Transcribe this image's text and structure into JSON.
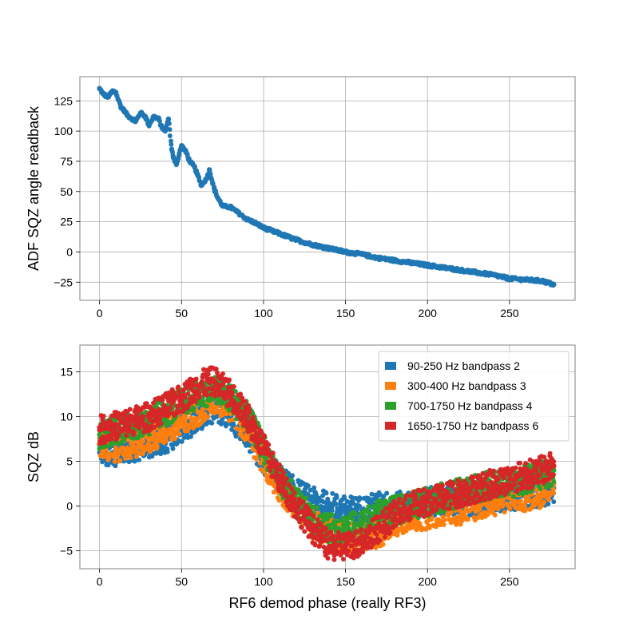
{
  "colors": {
    "c0": "#1f77b4",
    "c1": "#ff7f0e",
    "c2": "#2ca02c",
    "c3": "#d62728",
    "grid": "#b0b0b0",
    "axis": "#808080"
  },
  "chart_data": [
    {
      "type": "scatter",
      "title": "",
      "xlabel": "",
      "ylabel": "ADF SQZ angle readback",
      "xlim": [
        -12,
        290
      ],
      "ylim": [
        -40,
        145
      ],
      "xticks": [
        0,
        50,
        100,
        150,
        200,
        250
      ],
      "yticks": [
        -25,
        0,
        25,
        50,
        75,
        100,
        125
      ],
      "ytick_labels": [
        "−25",
        "0",
        "25",
        "50",
        "75",
        "100",
        "125"
      ],
      "grid": true,
      "series": [
        {
          "color": "#1f77b4",
          "x": [
            0,
            2,
            5,
            8,
            10,
            13,
            15,
            17,
            20,
            22,
            25,
            28,
            30,
            33,
            36,
            38,
            40,
            42,
            44,
            45,
            47,
            50,
            53,
            55,
            58,
            60,
            62,
            65,
            67,
            70,
            72,
            75,
            80,
            85,
            90,
            95,
            100,
            110,
            120,
            130,
            140,
            150,
            160,
            170,
            180,
            190,
            200,
            210,
            220,
            230,
            240,
            250,
            260,
            270,
            277
          ],
          "y": [
            135,
            131,
            128,
            133,
            132,
            120,
            117,
            113,
            110,
            108,
            115,
            112,
            105,
            112,
            110,
            103,
            100,
            110,
            85,
            78,
            73,
            88,
            82,
            75,
            70,
            63,
            55,
            60,
            68,
            52,
            45,
            38,
            37,
            32,
            27,
            24,
            20,
            15,
            10,
            6,
            3,
            0,
            -2,
            -5,
            -7,
            -9,
            -11,
            -13,
            -15,
            -17,
            -19,
            -22,
            -23,
            -24,
            -27
          ]
        }
      ]
    },
    {
      "type": "scatter",
      "title": "",
      "xlabel": "RF6 demod phase (really RF3)",
      "ylabel": "SQZ dB",
      "xlim": [
        -12,
        290
      ],
      "ylim": [
        -7,
        18
      ],
      "xticks": [
        0,
        50,
        100,
        150,
        200,
        250
      ],
      "yticks": [
        -5,
        0,
        5,
        10,
        15
      ],
      "ytick_labels": [
        "−5",
        "0",
        "5",
        "10",
        "15"
      ],
      "grid": true,
      "legend_position": "top-right",
      "series": [
        {
          "name": "90-250 Hz bandpass 2",
          "color": "#1f77b4",
          "x": [
            0,
            10,
            20,
            30,
            40,
            50,
            60,
            70,
            80,
            90,
            100,
            110,
            120,
            130,
            140,
            150,
            160,
            170,
            180,
            190,
            200,
            210,
            220,
            230,
            240,
            250,
            260,
            270,
            277
          ],
          "y": [
            6,
            6,
            6.5,
            7,
            7.5,
            8.5,
            10,
            11,
            10,
            8,
            5,
            3,
            1.5,
            0.5,
            0,
            -0.5,
            -0.5,
            0,
            0,
            0,
            0.5,
            0.5,
            0.5,
            0.5,
            1,
            1,
            1.5,
            1.5,
            2
          ]
        },
        {
          "name": "300-400 Hz bandpass 3",
          "color": "#ff7f0e",
          "x": [
            0,
            10,
            20,
            30,
            40,
            50,
            60,
            70,
            80,
            90,
            100,
            110,
            120,
            130,
            140,
            150,
            160,
            170,
            180,
            190,
            200,
            210,
            220,
            230,
            240,
            250,
            260,
            270,
            277
          ],
          "y": [
            7,
            6.5,
            7,
            7.5,
            8.5,
            9.5,
            10.5,
            12,
            11,
            8.5,
            5,
            2,
            0,
            -2,
            -3,
            -3.5,
            -3.5,
            -3,
            -2,
            -1.5,
            -1,
            -0.5,
            -0.5,
            0,
            0.5,
            1,
            1,
            1.5,
            2.5
          ]
        },
        {
          "name": "700-1750 Hz bandpass 4",
          "color": "#2ca02c",
          "x": [
            0,
            10,
            20,
            30,
            40,
            50,
            60,
            70,
            80,
            90,
            100,
            110,
            120,
            130,
            140,
            150,
            160,
            170,
            180,
            190,
            200,
            210,
            220,
            230,
            240,
            250,
            260,
            270,
            277
          ],
          "y": [
            8,
            8.5,
            9,
            9.5,
            10.5,
            11.5,
            12.5,
            13,
            12,
            10,
            6.5,
            3,
            0.5,
            -1.5,
            -2.5,
            -2.5,
            -2,
            -1,
            -0.5,
            0,
            0.5,
            1,
            1.5,
            2,
            2.5,
            2.5,
            3,
            3.5,
            4
          ]
        },
        {
          "name": "1650-1750 Hz bandpass 6",
          "color": "#d62728",
          "x": [
            0,
            10,
            20,
            30,
            40,
            50,
            60,
            70,
            80,
            90,
            100,
            110,
            120,
            130,
            140,
            150,
            160,
            170,
            180,
            190,
            200,
            210,
            220,
            230,
            240,
            250,
            260,
            270,
            277
          ],
          "y": [
            8.5,
            9,
            9.5,
            10,
            11,
            12,
            13.5,
            14,
            12.5,
            10,
            6.5,
            3,
            0,
            -2.5,
            -4.5,
            -4.5,
            -4,
            -2.5,
            -1,
            0,
            0.5,
            1,
            1.5,
            2,
            2.5,
            3,
            3.5,
            4,
            4.5
          ]
        }
      ]
    }
  ]
}
